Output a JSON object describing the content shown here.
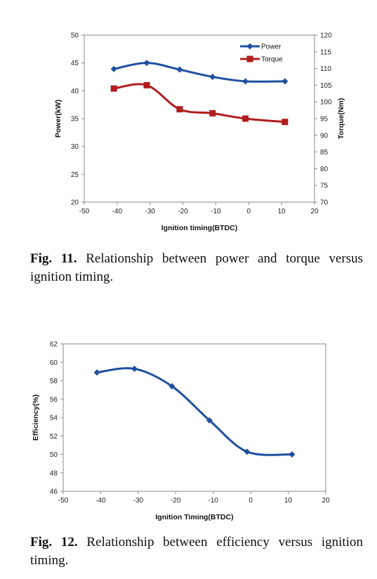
{
  "figures": [
    {
      "caption_label": "Fig. 11.",
      "caption_text": "Relationship between power and torque versus ignition timing."
    },
    {
      "caption_label": "Fig. 12.",
      "caption_text": "Relationship between efficiency versus ignition timing."
    }
  ],
  "chart_data": [
    {
      "type": "line",
      "title": "",
      "xlabel": "Ignition timing(BTDC)",
      "ylabel": "Power(kW)",
      "y2label": "Torque(Nm)",
      "xlim": [
        -50,
        20
      ],
      "xticks": [
        -50,
        -40,
        -30,
        -20,
        -10,
        0,
        10,
        20
      ],
      "ylim": [
        20,
        50
      ],
      "yticks": [
        20,
        25,
        30,
        35,
        40,
        45,
        50
      ],
      "y2lim": [
        70,
        120
      ],
      "y2ticks": [
        70,
        75,
        80,
        85,
        90,
        95,
        100,
        105,
        110,
        115,
        120
      ],
      "legend_position": "top-right",
      "grid": false,
      "series": [
        {
          "name": "Power",
          "axis": "left",
          "color": "#1f4fa0",
          "marker": "diamond",
          "x": [
            -41,
            -31,
            -21,
            -11,
            -1,
            11
          ],
          "y": [
            43.9,
            45.0,
            43.8,
            42.5,
            41.7,
            41.7
          ]
        },
        {
          "name": "Torque",
          "axis": "right",
          "color": "#b01e1e",
          "marker": "square",
          "x": [
            -41,
            -31,
            -21,
            -11,
            -1,
            11
          ],
          "y": [
            104.0,
            105.0,
            97.8,
            96.6,
            95.0,
            94.0
          ]
        }
      ]
    },
    {
      "type": "line",
      "title": "",
      "xlabel": "Ignition Timing(BTDC)",
      "ylabel": "Efficiency(%)",
      "xlim": [
        -50,
        20
      ],
      "xticks": [
        -50,
        -40,
        -30,
        -20,
        -10,
        0,
        10,
        20
      ],
      "ylim": [
        46,
        62
      ],
      "yticks": [
        46,
        48,
        50,
        52,
        54,
        56,
        58,
        60,
        62
      ],
      "grid": false,
      "series": [
        {
          "color": "#1f4fa0",
          "marker": "diamond",
          "x": [
            -41,
            -31,
            -21,
            -11,
            -1,
            11
          ],
          "y": [
            58.9,
            59.3,
            57.4,
            53.7,
            50.3,
            50.0
          ]
        }
      ]
    }
  ]
}
